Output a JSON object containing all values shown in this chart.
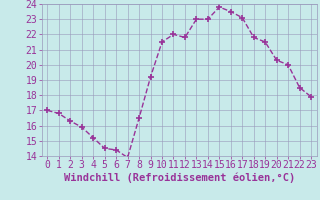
{
  "x": [
    0,
    1,
    2,
    3,
    4,
    5,
    6,
    7,
    8,
    9,
    10,
    11,
    12,
    13,
    14,
    15,
    16,
    17,
    18,
    19,
    20,
    21,
    22,
    23
  ],
  "y": [
    17.0,
    16.8,
    16.3,
    15.9,
    15.2,
    14.5,
    14.4,
    13.9,
    16.5,
    19.2,
    21.5,
    22.0,
    21.8,
    23.0,
    23.0,
    23.8,
    23.5,
    23.1,
    21.8,
    21.5,
    20.3,
    20.0,
    18.5,
    17.9
  ],
  "line_color": "#993399",
  "marker": "+",
  "marker_size": 5,
  "marker_linewidth": 1.2,
  "xlabel": "Windchill (Refroidissement éolien,°C)",
  "ylim": [
    14,
    24
  ],
  "xlim_min": -0.5,
  "xlim_max": 23.5,
  "yticks": [
    14,
    15,
    16,
    17,
    18,
    19,
    20,
    21,
    22,
    23,
    24
  ],
  "xticks": [
    0,
    1,
    2,
    3,
    4,
    5,
    6,
    7,
    8,
    9,
    10,
    11,
    12,
    13,
    14,
    15,
    16,
    17,
    18,
    19,
    20,
    21,
    22,
    23
  ],
  "bg_color": "#c8eaea",
  "grid_color": "#9999bb",
  "line_color_spine": "#9999bb",
  "tick_label_color": "#993399",
  "xlabel_color": "#993399",
  "xlabel_fontsize": 7.5,
  "tick_fontsize": 7,
  "linewidth": 1.0
}
